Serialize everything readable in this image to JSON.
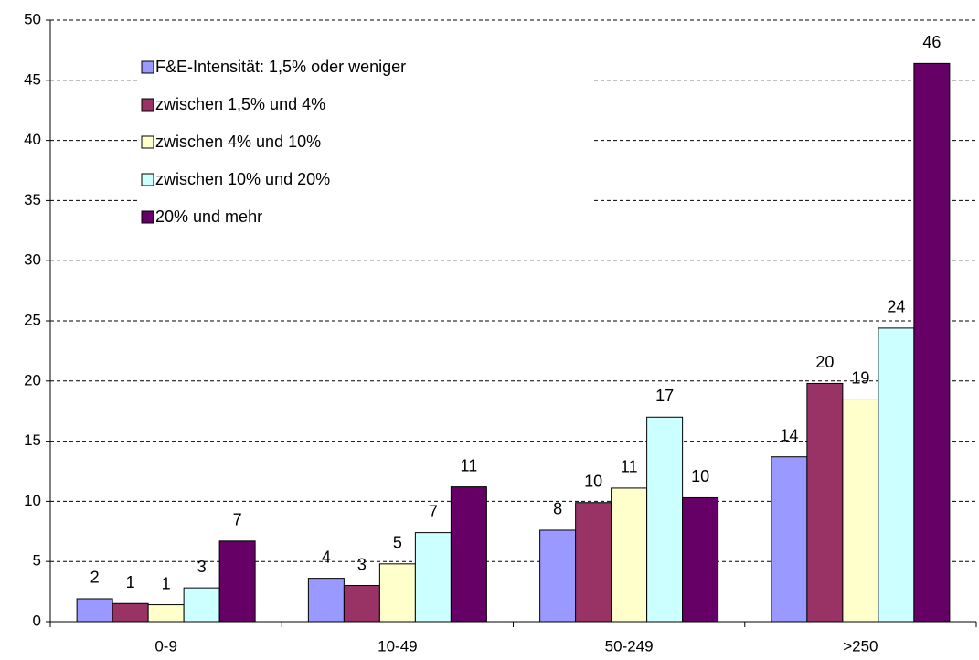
{
  "chart_data": {
    "type": "bar",
    "categories": [
      "0-9",
      "10-49",
      "50-249",
      ">250"
    ],
    "series": [
      {
        "name": "F&E-Intensität: 1,5% oder weniger",
        "color": "#9999ff",
        "values": [
          1.9,
          3.6,
          7.6,
          13.7
        ],
        "value_labels": [
          "2",
          "4",
          "8",
          "14"
        ]
      },
      {
        "name": "zwischen 1,5% und 4%",
        "color": "#993366",
        "values": [
          1.5,
          3.0,
          9.9,
          19.8
        ],
        "value_labels": [
          "1",
          "3",
          "10",
          "20"
        ]
      },
      {
        "name": "zwischen 4% und 10%",
        "color": "#ffffcc",
        "values": [
          1.4,
          4.8,
          11.1,
          18.5
        ],
        "value_labels": [
          "1",
          "5",
          "11",
          "19"
        ]
      },
      {
        "name": "zwischen 10% und 20%",
        "color": "#ccffff",
        "values": [
          2.8,
          7.4,
          17.0,
          24.4
        ],
        "value_labels": [
          "3",
          "7",
          "17",
          "24"
        ]
      },
      {
        "name": "20% und mehr",
        "color": "#660066",
        "values": [
          6.7,
          11.2,
          10.3,
          46.4
        ],
        "value_labels": [
          "7",
          "11",
          "10",
          "46"
        ]
      }
    ],
    "ylim": [
      0,
      50
    ],
    "yticks": [
      0,
      5,
      10,
      15,
      20,
      25,
      30,
      35,
      40,
      45,
      50
    ],
    "grid": true,
    "legend": "top-left"
  }
}
